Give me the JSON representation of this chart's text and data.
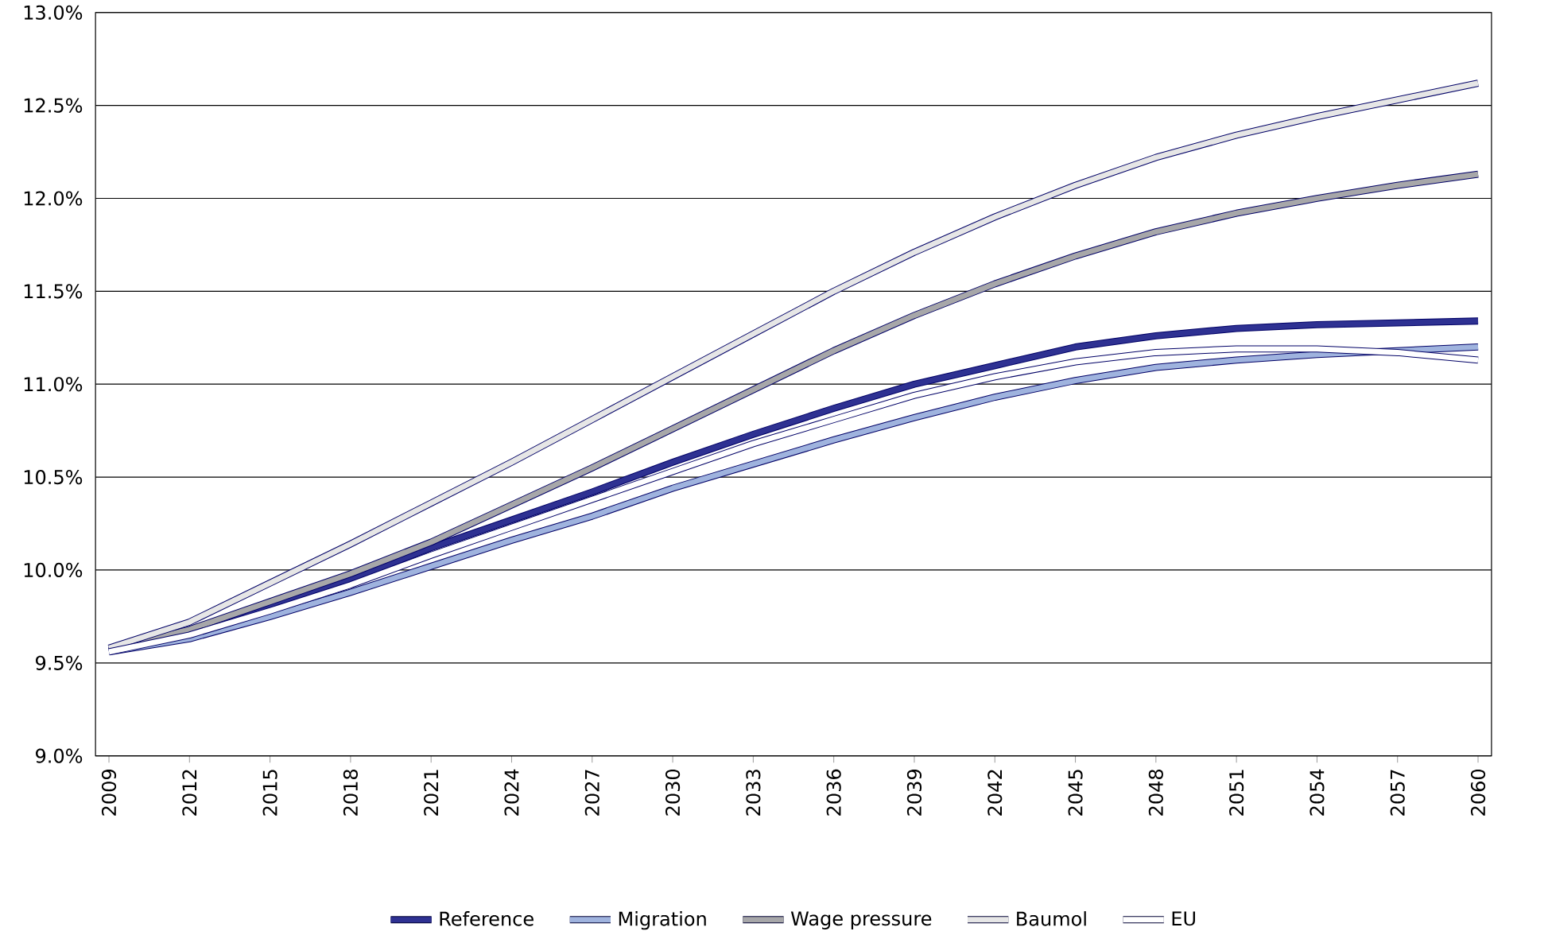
{
  "chart_data": {
    "type": "line",
    "x": [
      2009,
      2012,
      2015,
      2018,
      2021,
      2024,
      2027,
      2030,
      2033,
      2036,
      2039,
      2042,
      2045,
      2048,
      2051,
      2054,
      2057,
      2060
    ],
    "series": [
      {
        "name": "Reference",
        "color": "#2e3192",
        "values": [
          9.57,
          9.67,
          9.8,
          9.95,
          10.12,
          10.27,
          10.42,
          10.58,
          10.73,
          10.87,
          11.0,
          11.1,
          11.2,
          11.26,
          11.3,
          11.32,
          11.33,
          11.34
        ]
      },
      {
        "name": "Migration",
        "color": "#9fb3de",
        "values": [
          9.56,
          9.63,
          9.75,
          9.88,
          10.02,
          10.16,
          10.29,
          10.44,
          10.57,
          10.7,
          10.82,
          10.93,
          11.02,
          11.09,
          11.13,
          11.16,
          11.18,
          11.2
        ]
      },
      {
        "name": "Wage pressure",
        "color": "#a7a7a9",
        "values": [
          9.57,
          9.68,
          9.83,
          9.98,
          10.15,
          10.35,
          10.55,
          10.76,
          10.97,
          11.18,
          11.37,
          11.54,
          11.69,
          11.82,
          11.92,
          12.0,
          12.07,
          12.13
        ]
      },
      {
        "name": "Baumol",
        "color": "#e6e6e6",
        "values": [
          9.58,
          9.72,
          9.93,
          10.14,
          10.36,
          10.58,
          10.81,
          11.04,
          11.27,
          11.5,
          11.71,
          11.9,
          12.07,
          12.22,
          12.34,
          12.44,
          12.53,
          12.62
        ]
      },
      {
        "name": "EU",
        "color": "#ffffff",
        "values": [
          9.56,
          9.65,
          9.78,
          9.92,
          10.08,
          10.23,
          10.38,
          10.53,
          10.68,
          10.81,
          10.94,
          11.04,
          11.12,
          11.17,
          11.19,
          11.19,
          11.17,
          11.13
        ]
      }
    ],
    "xlim": [
      2008.5,
      2060.5
    ],
    "xticks": [
      2009,
      2012,
      2015,
      2018,
      2021,
      2024,
      2027,
      2030,
      2033,
      2036,
      2039,
      2042,
      2045,
      2048,
      2051,
      2054,
      2057,
      2060
    ],
    "ylim": [
      9.0,
      13.0
    ],
    "yticks": [
      {
        "value": 9.0,
        "label": "9.0%"
      },
      {
        "value": 9.5,
        "label": "9.5%"
      },
      {
        "value": 10.0,
        "label": "10.0%"
      },
      {
        "value": 10.5,
        "label": "10.5%"
      },
      {
        "value": 11.0,
        "label": "11.0%"
      },
      {
        "value": 11.5,
        "label": "11.5%"
      },
      {
        "value": 12.0,
        "label": "12.0%"
      },
      {
        "value": 12.5,
        "label": "12.5%"
      },
      {
        "value": 13.0,
        "label": "13.0%"
      }
    ],
    "grid": "y",
    "legend": "bottom",
    "marker": "none",
    "line_style": "solid"
  }
}
